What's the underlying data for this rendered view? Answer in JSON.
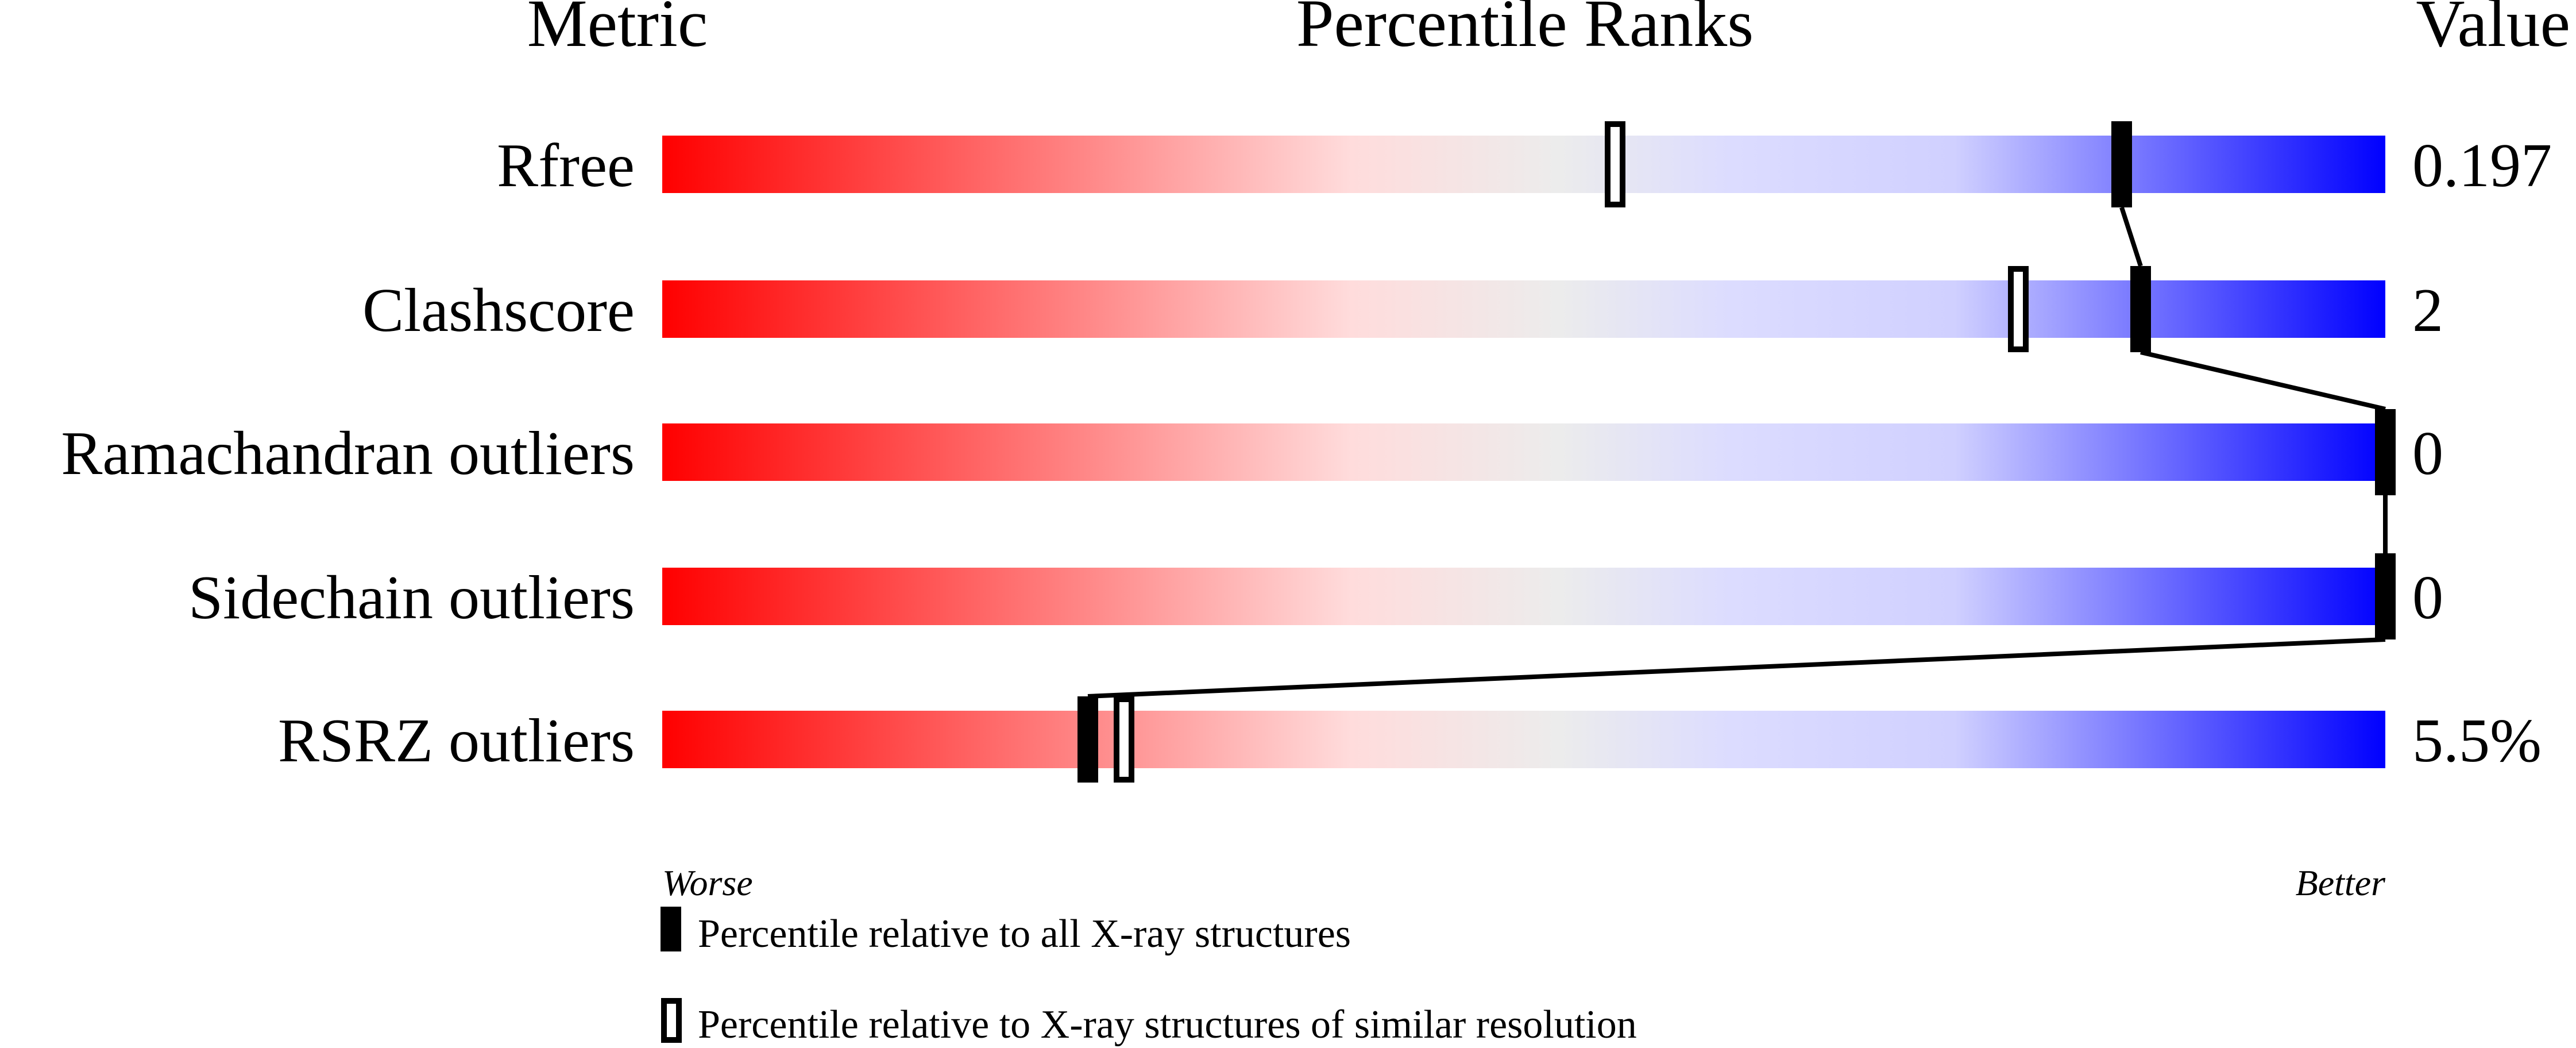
{
  "header": {
    "metric": "Metric",
    "percentile": "Percentile Ranks",
    "value": "Value"
  },
  "chart_data": {
    "type": "bar",
    "xlim": [
      0,
      100
    ],
    "gradient_colors": [
      "#ff0000",
      "#ffdcdc",
      "#ececec",
      "#dcdcff",
      "#0000ff"
    ],
    "axis_left_label": "Worse",
    "axis_right_label": "Better",
    "metrics": [
      {
        "name": "Rfree",
        "value": "0.197",
        "percentile_all": 84.7,
        "percentile_similar": 55.3
      },
      {
        "name": "Clashscore",
        "value": "2",
        "percentile_all": 85.8,
        "percentile_similar": 78.7
      },
      {
        "name": "Ramachandran outliers",
        "value": "0",
        "percentile_all": 100,
        "percentile_similar": 100
      },
      {
        "name": "Sidechain outliers",
        "value": "0",
        "percentile_all": 100,
        "percentile_similar": 100
      },
      {
        "name": "RSRZ outliers",
        "value": "5.5%",
        "percentile_all": 24.7,
        "percentile_similar": 26.8
      }
    ],
    "legend": [
      {
        "marker": "filled",
        "label": "Percentile relative to all X-ray structures"
      },
      {
        "marker": "open",
        "label": "Percentile relative to X-ray structures of similar resolution"
      }
    ]
  }
}
